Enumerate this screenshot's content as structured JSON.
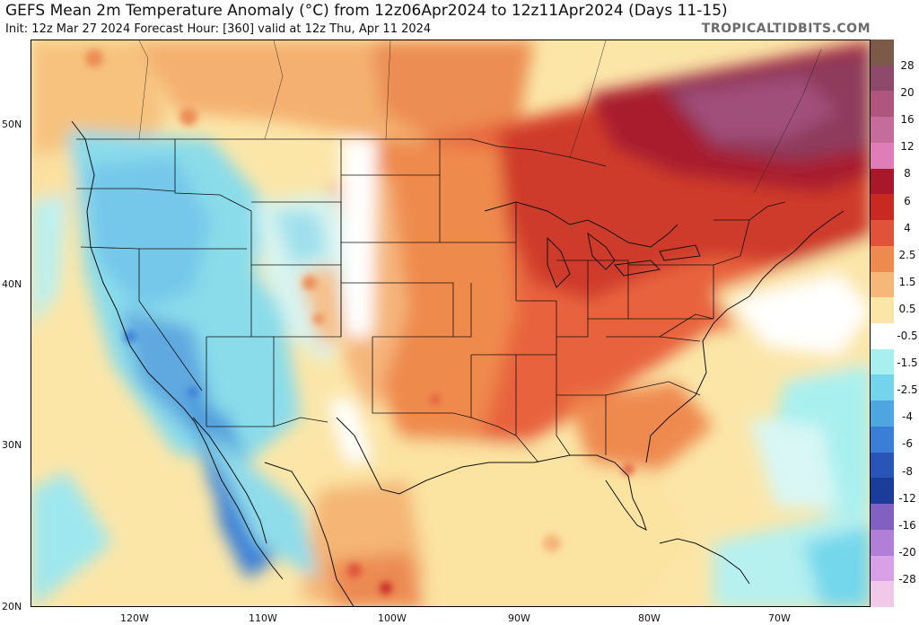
{
  "header": {
    "title": "GEFS Mean 2m Temperature Anomaly (°C) from 12z06Apr2024 to 12z11Apr2024 (Days 11-15)",
    "subtitle": "Init: 12z Mar 27 2024   Forecast Hour: [360]   valid at 12z Thu, Apr 11 2024",
    "credit": "TROPICALTIDBITS.COM"
  },
  "axes": {
    "lat_labels": [
      "50N",
      "40N",
      "30N",
      "20N"
    ],
    "lon_labels": [
      "120W",
      "110W",
      "100W",
      "90W",
      "80W",
      "70W"
    ]
  },
  "colorbar": {
    "labels": [
      "28",
      "20",
      "16",
      "12",
      "8",
      "6",
      "4",
      "2.5",
      "1.5",
      "0.5",
      "-0.5",
      "-1.5",
      "-2.5",
      "-4",
      "-6",
      "-8",
      "-12",
      "-16",
      "-20",
      "-28"
    ],
    "colors": [
      "#7a5a48",
      "#8e4a6a",
      "#b0557e",
      "#c56c9a",
      "#e07cb8",
      "#a8182a",
      "#c82a22",
      "#e0523a",
      "#ee8a4e",
      "#f6b878",
      "#fbe6a8",
      "#ffffff",
      "#a8f0f0",
      "#74d4ec",
      "#4ea6e0",
      "#3a7ed8",
      "#2a55b8",
      "#1a3c9a",
      "#8060c0",
      "#b080d8",
      "#d8a0e6",
      "#f0c8e8"
    ]
  },
  "regions": {
    "warm_core": "Great Lakes / Northeast / Quebec",
    "cool_core": "Western US / Baja California"
  }
}
